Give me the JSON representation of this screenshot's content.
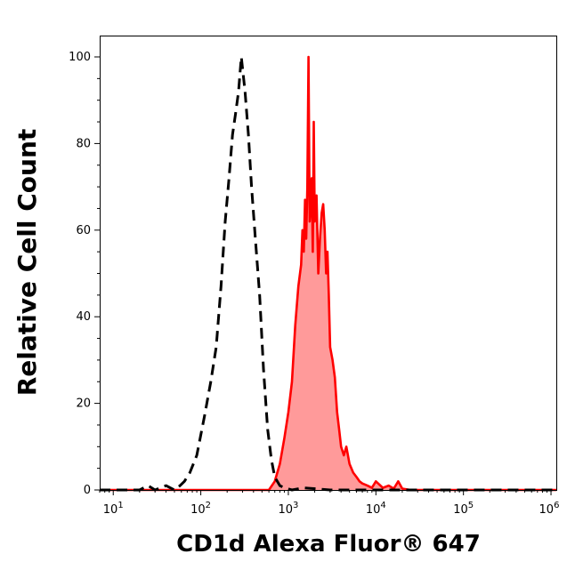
{
  "chart_data": {
    "type": "area",
    "title": "",
    "xlabel": "CD1d Alexa Fluor® 647",
    "ylabel": "Relative Cell Count",
    "x_scale": "log",
    "xlim": [
      7,
      1150000
    ],
    "ylim": [
      0,
      100
    ],
    "grid": false,
    "x_ticks": [
      {
        "value": 10,
        "base": "10",
        "exp": "1"
      },
      {
        "value": 100,
        "base": "10",
        "exp": "2"
      },
      {
        "value": 1000,
        "base": "10",
        "exp": "3"
      },
      {
        "value": 10000,
        "base": "10",
        "exp": "4"
      },
      {
        "value": 100000,
        "base": "10",
        "exp": "5"
      },
      {
        "value": 1000000,
        "base": "10",
        "exp": "6"
      }
    ],
    "y_ticks": [
      0,
      20,
      40,
      60,
      80,
      100
    ],
    "series": [
      {
        "style": "dashed",
        "color": "#000000",
        "fill": "none",
        "x": [
          7,
          20,
          25,
          30,
          40,
          50,
          58,
          65,
          75,
          90,
          110,
          130,
          150,
          170,
          190,
          210,
          230,
          250,
          270,
          290,
          320,
          350,
          380,
          420,
          470,
          520,
          580,
          640,
          700,
          800,
          900,
          1100,
          1500,
          3000,
          10000,
          100000,
          1150000
        ],
        "y": [
          0,
          0,
          1,
          0,
          1,
          0,
          1,
          2,
          4,
          8,
          17,
          25,
          33,
          47,
          62,
          72,
          82,
          87,
          92,
          100,
          92,
          82,
          70,
          58,
          45,
          28,
          14,
          7,
          3,
          1,
          0.5,
          0,
          0.5,
          0,
          0,
          0,
          0
        ]
      },
      {
        "style": "solid",
        "color": "#ff0000",
        "fill": "#ff9a9a",
        "x": [
          7,
          600,
          700,
          800,
          900,
          1000,
          1100,
          1200,
          1300,
          1400,
          1450,
          1500,
          1550,
          1600,
          1650,
          1700,
          1750,
          1800,
          1850,
          1900,
          1950,
          2000,
          2100,
          2200,
          2300,
          2400,
          2500,
          2600,
          2700,
          2800,
          2900,
          3000,
          3200,
          3400,
          3600,
          3800,
          4000,
          4300,
          4600,
          5000,
          5500,
          6000,
          6500,
          7000,
          8000,
          9000,
          10000,
          12000,
          14000,
          16000,
          18000,
          20000,
          25000,
          1150000
        ],
        "y": [
          0,
          0,
          2,
          6,
          12,
          18,
          25,
          38,
          47,
          52,
          60,
          55,
          67,
          58,
          70,
          100,
          62,
          66,
          72,
          55,
          85,
          62,
          68,
          50,
          58,
          64,
          66,
          60,
          50,
          55,
          45,
          33,
          30,
          26,
          18,
          14,
          10,
          8,
          10,
          6,
          4,
          3,
          2,
          1.5,
          1,
          0.5,
          2,
          0.5,
          1,
          0.3,
          2,
          0.3,
          0,
          0
        ]
      }
    ]
  }
}
